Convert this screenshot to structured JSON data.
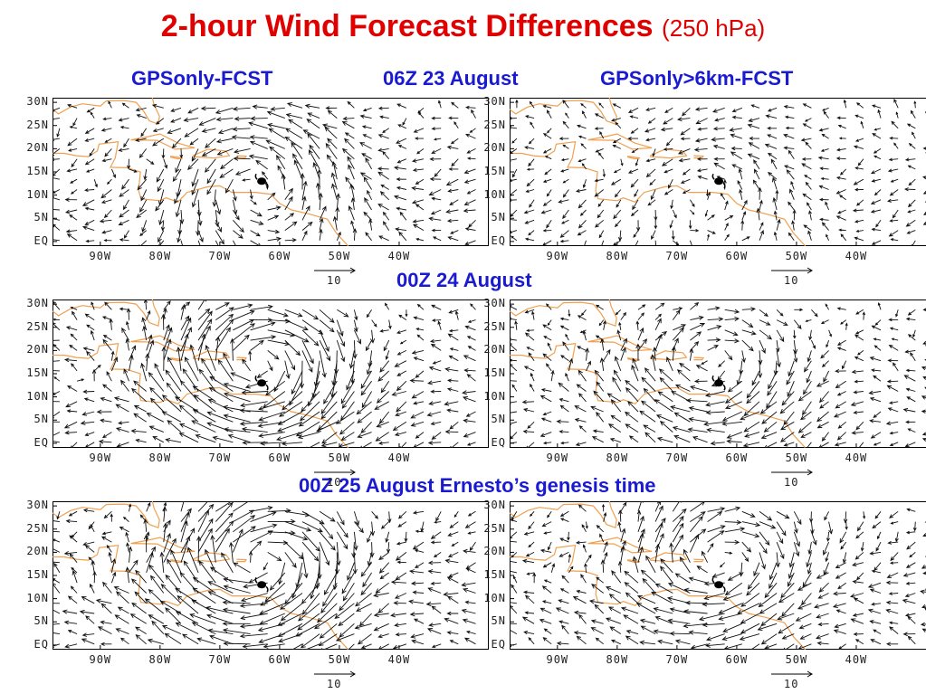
{
  "title": {
    "main": "2-hour Wind Forecast Differences",
    "sub": "(250 hPa)"
  },
  "headers": {
    "left": "GPSonly-FCST",
    "row1_time": "06Z 23 August",
    "right": "GPSonly>6km-FCST",
    "row2_time": "00Z 24 August",
    "row3_time": "00Z 25 August   Ernesto’s genesis time"
  },
  "axes": {
    "y_labels": [
      "30N",
      "25N",
      "20N",
      "15N",
      "10N",
      "5N",
      "EQ"
    ],
    "x_labels": [
      "90W",
      "80W",
      "70W",
      "60W",
      "50W",
      "40W"
    ]
  },
  "vector_scale_label": "10",
  "colors": {
    "title": "#e00000",
    "header": "#1a1ad0",
    "coastline": "#f0a050",
    "vector": "#111111"
  },
  "chart_data": [
    {
      "type": "vector-field",
      "panel": "GPSonly-FCST",
      "time": "06Z 23 August",
      "level": "250 hPa",
      "x_range_deg_lon": [
        -98,
        -25
      ],
      "y_range_deg_lat": [
        -1,
        31
      ],
      "storm_center": {
        "lon": -63,
        "lat": 13
      }
    },
    {
      "type": "vector-field",
      "panel": "GPSonly>6km-FCST",
      "time": "06Z 23 August",
      "level": "250 hPa",
      "x_range_deg_lon": [
        -98,
        -25
      ],
      "y_range_deg_lat": [
        -1,
        31
      ],
      "storm_center": {
        "lon": -63,
        "lat": 13
      }
    },
    {
      "type": "vector-field",
      "panel": "GPSonly-FCST",
      "time": "00Z 24 August",
      "level": "250 hPa",
      "x_range_deg_lon": [
        -98,
        -25
      ],
      "y_range_deg_lat": [
        -1,
        31
      ],
      "storm_center": {
        "lon": -63,
        "lat": 13
      }
    },
    {
      "type": "vector-field",
      "panel": "GPSonly>6km-FCST",
      "time": "00Z 24 August",
      "level": "250 hPa",
      "x_range_deg_lon": [
        -98,
        -25
      ],
      "y_range_deg_lat": [
        -1,
        31
      ],
      "storm_center": {
        "lon": -63,
        "lat": 13
      }
    },
    {
      "type": "vector-field",
      "panel": "GPSonly-FCST",
      "time": "00Z 25 August",
      "level": "250 hPa",
      "x_range_deg_lon": [
        -98,
        -25
      ],
      "y_range_deg_lat": [
        -1,
        31
      ],
      "storm_center": {
        "lon": -63,
        "lat": 13
      }
    },
    {
      "type": "vector-field",
      "panel": "GPSonly>6km-FCST",
      "time": "00Z 25 August",
      "level": "250 hPa",
      "x_range_deg_lon": [
        -98,
        -25
      ],
      "y_range_deg_lat": [
        -1,
        31
      ],
      "storm_center": {
        "lon": -63,
        "lat": 13
      }
    }
  ]
}
